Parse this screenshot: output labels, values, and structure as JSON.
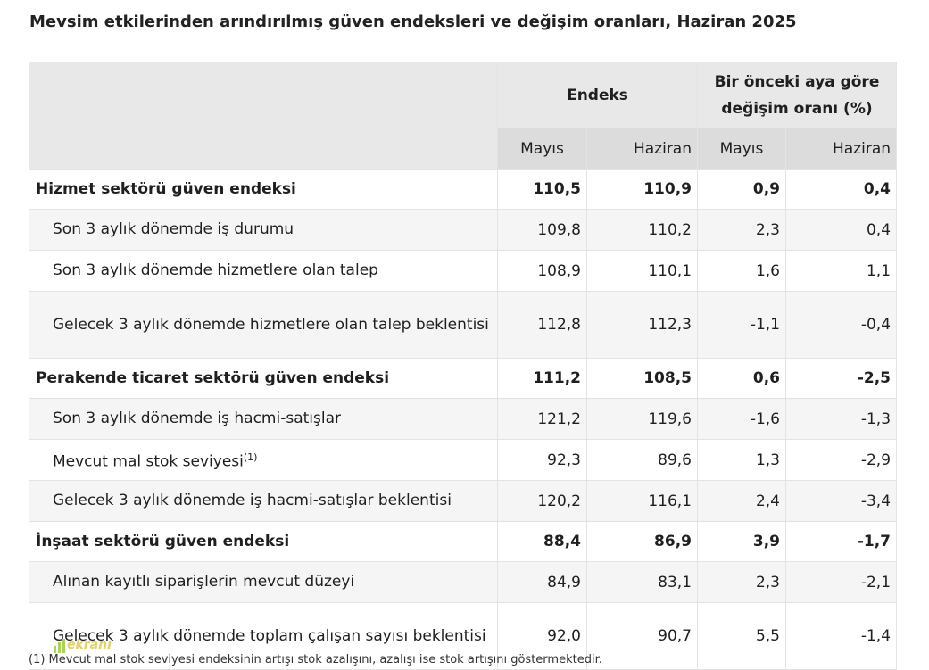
{
  "title": "Mevsim etkilerinden arındırılmış güven endeksleri ve değişim oranları, Haziran 2025",
  "header": {
    "group1": "Endeks",
    "group2": "Bir önceki aya göre değişim oranı (%)",
    "sub": [
      "Mayıs",
      "Haziran",
      "Mayıs",
      "Haziran"
    ]
  },
  "rows": [
    {
      "label": "Hizmet sektörü güven endeksi",
      "values": [
        "110,5",
        "110,9",
        "0,9",
        "0,4"
      ]
    },
    {
      "label": "Son 3 aylık dönemde iş durumu",
      "values": [
        "109,8",
        "110,2",
        "2,3",
        "0,4"
      ]
    },
    {
      "label": "Son 3 aylık dönemde hizmetlere olan talep",
      "values": [
        "108,9",
        "110,1",
        "1,6",
        "1,1"
      ]
    },
    {
      "label": "Gelecek 3 aylık dönemde hizmetlere olan talep beklentisi",
      "values": [
        "112,8",
        "112,3",
        "-1,1",
        "-0,4"
      ]
    },
    {
      "label": "Perakende ticaret sektörü güven endeksi",
      "values": [
        "111,2",
        "108,5",
        "0,6",
        "-2,5"
      ]
    },
    {
      "label": "Son 3 aylık dönemde iş hacmi-satışlar",
      "values": [
        "121,2",
        "119,6",
        "-1,6",
        "-1,3"
      ]
    },
    {
      "label": "Mevcut mal stok seviyesi",
      "sup": "(1)",
      "values": [
        "92,3",
        "89,6",
        "1,3",
        "-2,9"
      ]
    },
    {
      "label": "Gelecek 3 aylık dönemde iş hacmi-satışlar beklentisi",
      "values": [
        "120,2",
        "116,1",
        "2,4",
        "-3,4"
      ]
    },
    {
      "label": "İnşaat sektörü güven endeksi",
      "values": [
        "88,4",
        "86,9",
        "3,9",
        "-1,7"
      ]
    },
    {
      "label": "Alınan kayıtlı siparişlerin mevcut düzeyi",
      "values": [
        "84,9",
        "83,1",
        "2,3",
        "-2,1"
      ]
    },
    {
      "label": "Gelecek 3 aylık dönemde toplam çalışan sayısı beklentisi",
      "values": [
        "92,0",
        "90,7",
        "5,5",
        "-1,4"
      ]
    }
  ],
  "footnote": "(1) Mevcut mal stok seviyesi endeksinin artışı stok azalışını, azalışı ise stok artışını göstermektedir.",
  "watermark": "ekranı"
}
